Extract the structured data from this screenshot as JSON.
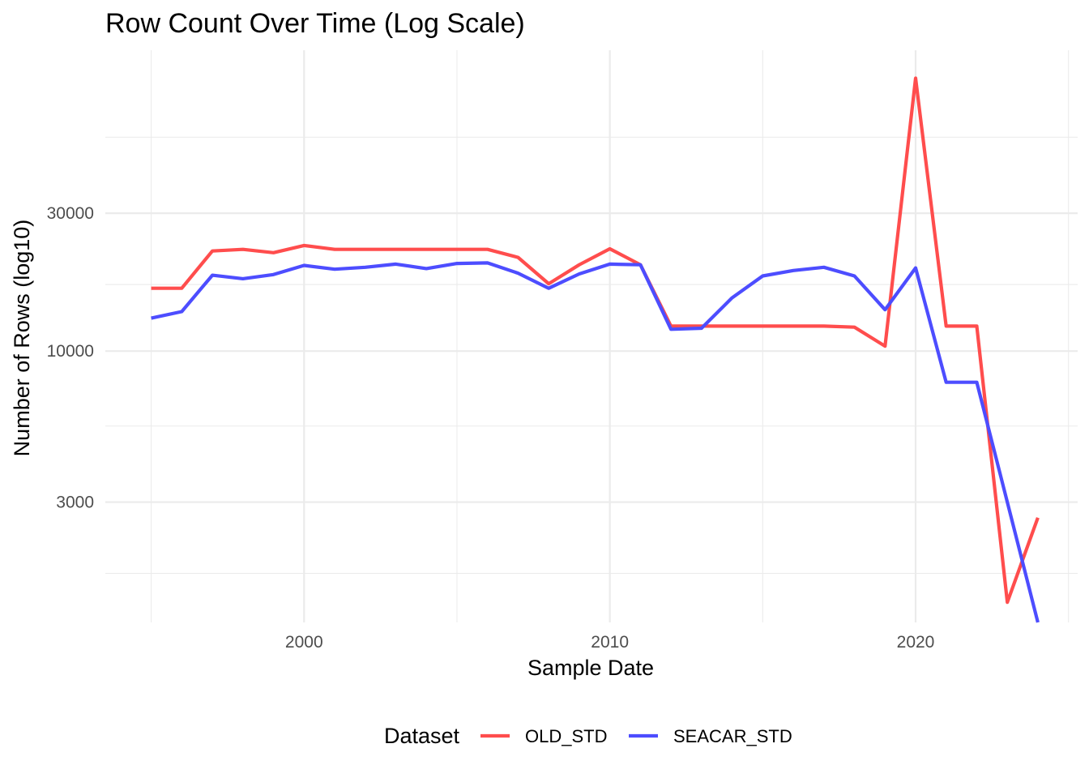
{
  "chart_data": {
    "type": "line",
    "title": "Row Count Over Time (Log Scale)",
    "xlabel": "Sample Date",
    "ylabel": "Number of Rows (log10)",
    "y_scale": "log10",
    "xlim": [
      1993.5,
      2025.3
    ],
    "ylim": [
      1150,
      110000
    ],
    "x_ticks": [
      2000,
      2010,
      2020
    ],
    "x_minor_ticks": [
      1995,
      2005,
      2015,
      2025
    ],
    "y_ticks": [
      3000,
      10000,
      30000
    ],
    "y_minor_ticks": [
      1700,
      5500,
      17000,
      55000
    ],
    "grid": true,
    "legend": {
      "title": "Dataset",
      "position": "bottom"
    },
    "x": [
      1995,
      1996,
      1997,
      1998,
      1999,
      2000,
      2001,
      2002,
      2003,
      2004,
      2005,
      2006,
      2007,
      2008,
      2009,
      2010,
      2011,
      2012,
      2013,
      2014,
      2015,
      2016,
      2017,
      2018,
      2019,
      2020,
      2021,
      2022,
      2023,
      2024
    ],
    "series": [
      {
        "name": "OLD_STD",
        "color": "#ff4d4d",
        "values": [
          16500,
          16500,
          22200,
          22500,
          21900,
          23200,
          22500,
          22500,
          22500,
          22500,
          22500,
          22500,
          21100,
          17100,
          19900,
          22600,
          19900,
          12200,
          12200,
          12200,
          12200,
          12200,
          12200,
          12100,
          10400,
          88000,
          12200,
          12200,
          1350,
          2650
        ]
      },
      {
        "name": "SEACAR_STD",
        "color": "#4d4dff",
        "values": [
          13000,
          13700,
          18300,
          17800,
          18400,
          19800,
          19200,
          19500,
          20000,
          19300,
          20100,
          20200,
          18600,
          16500,
          18500,
          20000,
          19900,
          11900,
          12000,
          15300,
          18200,
          19000,
          19500,
          18200,
          13900,
          19400,
          7800,
          7800,
          3000,
          1150
        ]
      }
    ]
  }
}
